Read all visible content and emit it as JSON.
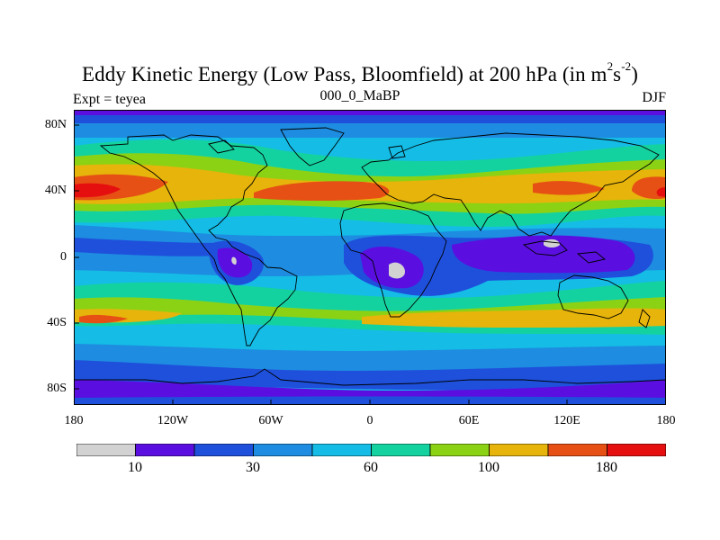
{
  "title": {
    "main": "Eddy Kinetic Energy (Low Pass, Bloomfield) at 200 hPa (in m",
    "sup1": "2",
    "s": "s",
    "sup2": "-2",
    "close": ")"
  },
  "subtitle_left": "Expt = teyea",
  "subtitle_center": "000_0_MaBP",
  "subtitle_right": "DJF",
  "y_ticks": [
    "80N",
    "40N",
    "0",
    "40S",
    "80S"
  ],
  "x_ticks": [
    "180",
    "120W",
    "60W",
    "0",
    "60E",
    "120E",
    "180"
  ],
  "colorbar": {
    "colors": [
      "#d2d2d2",
      "#5a0fe0",
      "#1e50dc",
      "#1e8ce0",
      "#14bce6",
      "#14d2a0",
      "#8cd214",
      "#e6b40a",
      "#e65014",
      "#e60f0f"
    ],
    "labels": [
      "10",
      "30",
      "60",
      "100",
      "180"
    ]
  },
  "chart_data": {
    "type": "heatmap",
    "title": "Eddy Kinetic Energy (Low Pass, Bloomfield) at 200 hPa (in m2s-2)",
    "x_range": [
      -180,
      180
    ],
    "y_range": [
      -90,
      90
    ],
    "xlabel": "",
    "ylabel": "",
    "contour_levels": [
      10,
      20,
      30,
      45,
      60,
      80,
      100,
      140,
      180
    ],
    "colors": [
      "#d2d2d2",
      "#5a0fe0",
      "#1e50dc",
      "#1e8ce0",
      "#14bce6",
      "#14d2a0",
      "#8cd214",
      "#e6b40a",
      "#e65014",
      "#e60f0f"
    ],
    "colorbar_tick_labels": [
      "10",
      "30",
      "60",
      "100",
      "180"
    ],
    "features": [
      {
        "region": "North Pacific jet (near 40N, 180)",
        "value_range": "140-190"
      },
      {
        "region": "North Atlantic jet (near 40N, 60W-0)",
        "value_range": "140-180"
      },
      {
        "region": "Central Africa (near 0-10S, 15E)",
        "value_range": "<10"
      },
      {
        "region": "Maritime continent (near 5N, 110E)",
        "value_range": "<10"
      },
      {
        "region": "Northern South America (near 0, 75W)",
        "value_range": "<10"
      },
      {
        "region": "Southern mid-latitudes band (40S-50S)",
        "value_range": "60-140"
      },
      {
        "region": "Antarctic margin (70S-80S)",
        "value_range": "20-45"
      }
    ]
  }
}
